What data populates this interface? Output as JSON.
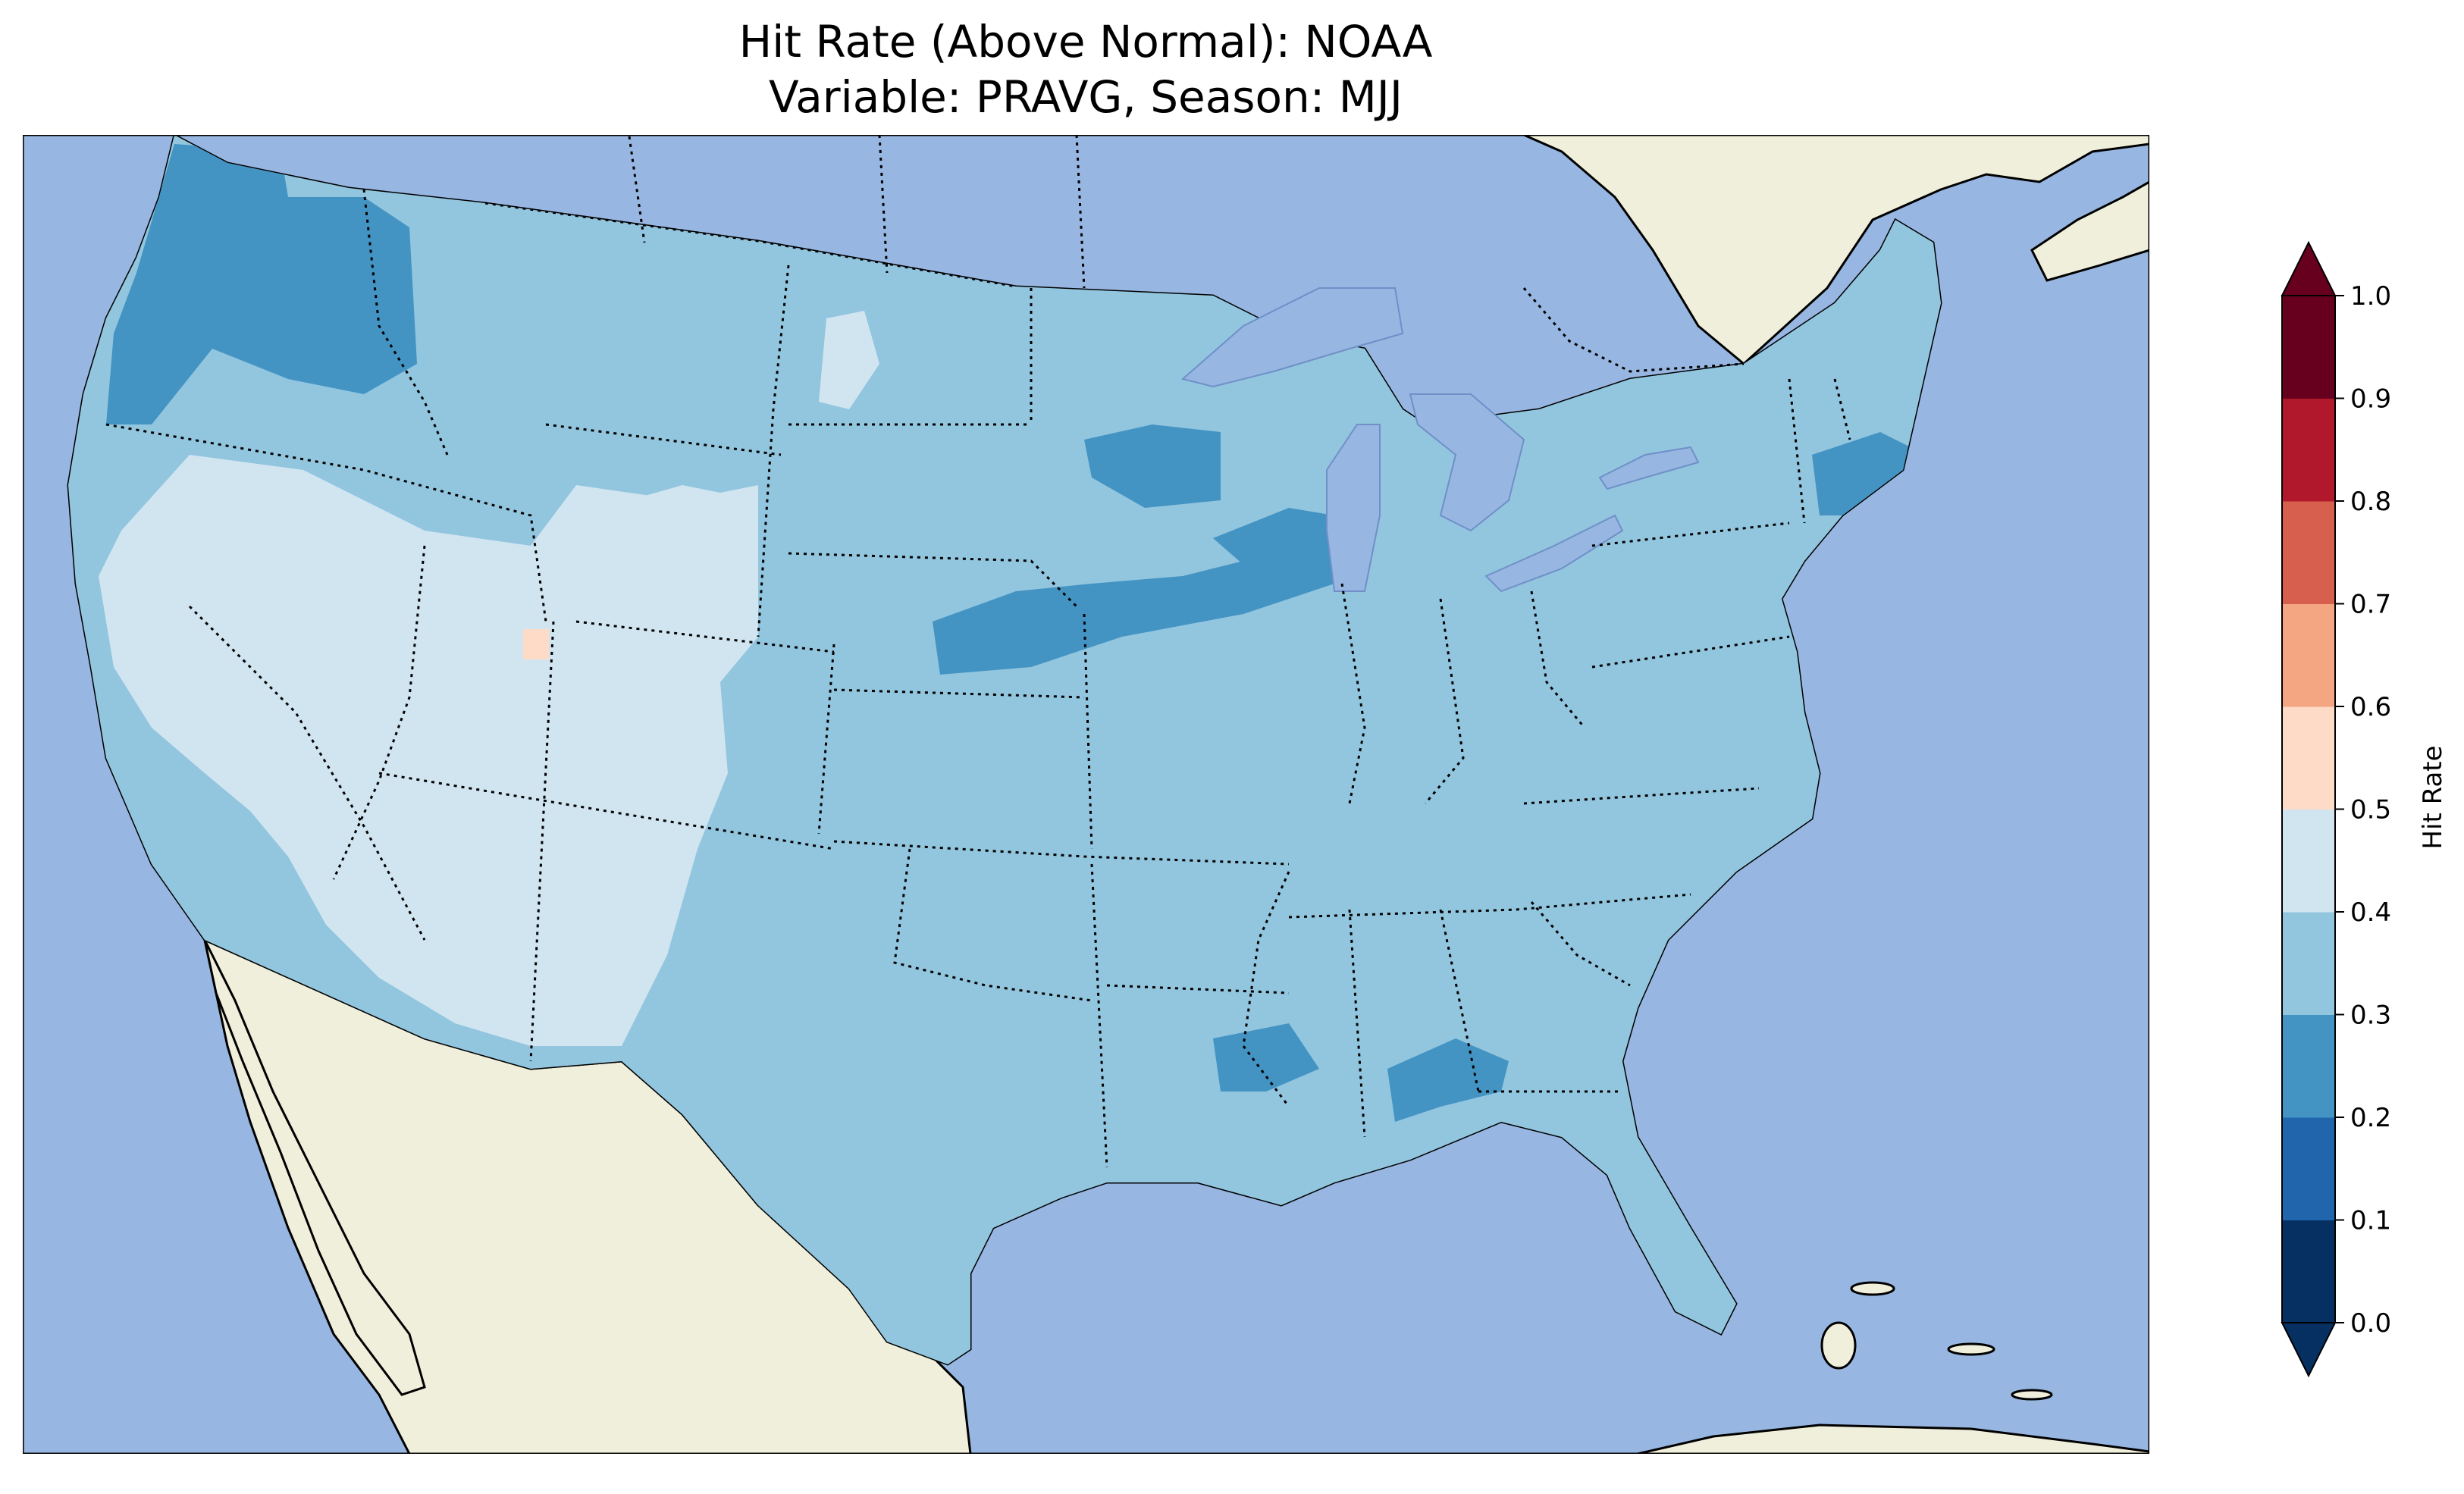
{
  "title": {
    "line1": "Hit Rate (Above Normal): NOAA",
    "line2": "Variable: PRAVG, Season: MJJ"
  },
  "map": {
    "ocean_color": "#97b6e1",
    "land_color": "#efefdb",
    "lake_color": "#97b6e1",
    "coastline_color": "#000000",
    "border_style": "dotted"
  },
  "colorbar": {
    "label": "Hit Rate",
    "levels": [
      0.0,
      0.1,
      0.2,
      0.3,
      0.4,
      0.5,
      0.6,
      0.7,
      0.8,
      0.9,
      1.0
    ],
    "tick_labels": [
      "0.0",
      "0.1",
      "0.2",
      "0.3",
      "0.4",
      "0.5",
      "0.6",
      "0.7",
      "0.8",
      "0.9",
      "1.0"
    ],
    "colors": [
      "#053061",
      "#2166ac",
      "#4393c3",
      "#92c5de",
      "#d1e5f0",
      "#fddbc7",
      "#f4a582",
      "#d6604d",
      "#b2182b",
      "#67001f"
    ],
    "extend": "both"
  },
  "chart_data": {
    "type": "heatmap",
    "title": "Hit Rate (Above Normal): NOAA\nVariable: PRAVG, Season: MJJ",
    "colorbar_label": "Hit Rate",
    "vmin": 0.0,
    "vmax": 1.0,
    "dominant_class": "0.3–0.4",
    "regions": [
      {
        "name": "Pacific Northwest coast",
        "value_range": "0.2–0.3"
      },
      {
        "name": "Northern Washington",
        "value_range": "0.2–0.3"
      },
      {
        "name": "Great Basin / Nevada / Utah",
        "value_range": "0.4–0.5"
      },
      {
        "name": "Arizona / New Mexico",
        "value_range": "0.4–0.5"
      },
      {
        "name": "Wyoming / Colorado",
        "value_range": "0.4–0.5"
      },
      {
        "name": "Central California",
        "value_range": "0.4–0.5"
      },
      {
        "name": "Central Utah spot",
        "value_range": "0.5–0.6"
      },
      {
        "name": "Nebraska / Iowa band",
        "value_range": "0.2–0.3"
      },
      {
        "name": "Minnesota",
        "value_range": "0.2–0.3"
      },
      {
        "name": "Southern Wisconsin",
        "value_range": "0.2–0.3"
      },
      {
        "name": "Massachusetts / Connecticut",
        "value_range": "0.2–0.3"
      },
      {
        "name": "Southern Alabama / Georgia",
        "value_range": "0.2–0.3"
      },
      {
        "name": "Mississippi",
        "value_range": "0.2–0.3"
      },
      {
        "name": "Eastern and Central US",
        "value_range": "0.3–0.4"
      }
    ]
  }
}
